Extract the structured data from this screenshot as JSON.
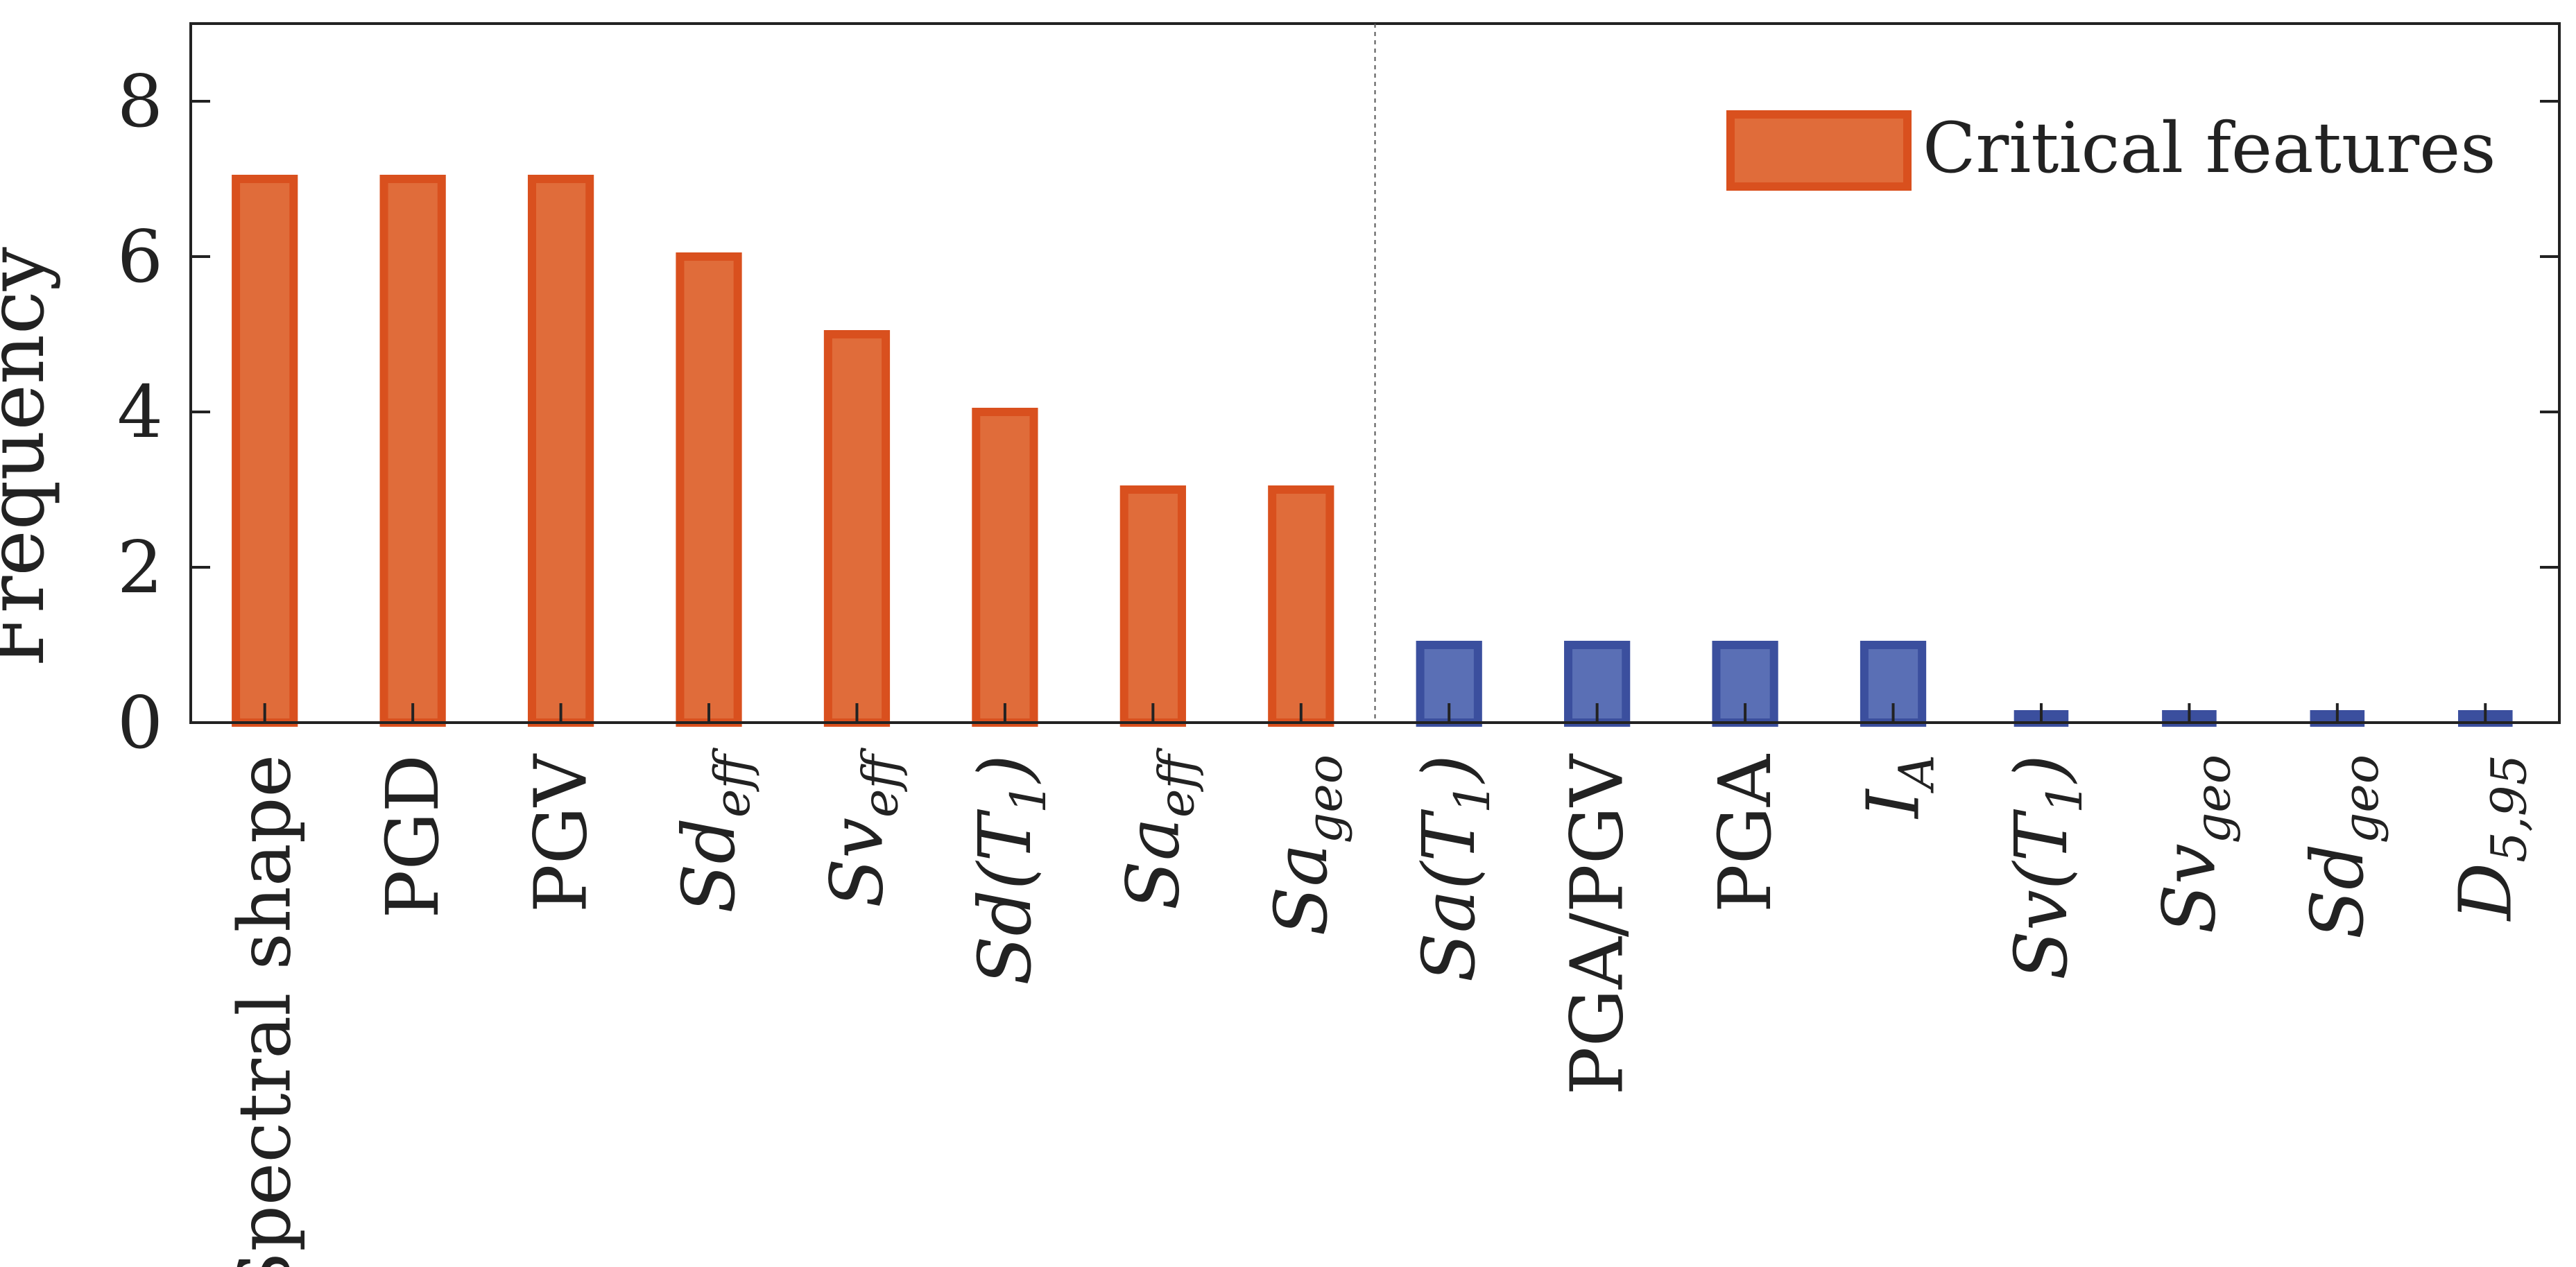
{
  "chart_data": {
    "type": "bar",
    "title": "",
    "xlabel": "",
    "ylabel": "Frequency",
    "ylim": [
      0,
      9
    ],
    "yticks": [
      0,
      2,
      4,
      6,
      8
    ],
    "grid": false,
    "legend_position": "top-right",
    "categories": [
      {
        "label": "Spectral shape",
        "base": "Spectral shape",
        "sub": "",
        "style": "normal"
      },
      {
        "label": "PGD",
        "base": "PGD",
        "sub": "",
        "style": "normal"
      },
      {
        "label": "PGV",
        "base": "PGV",
        "sub": "",
        "style": "normal"
      },
      {
        "label": "Sd_eff",
        "base": "Sd",
        "sub": "eff",
        "style": "italic"
      },
      {
        "label": "Sv_eff",
        "base": "Sv",
        "sub": "eff",
        "style": "italic"
      },
      {
        "label": "Sd(T1)",
        "base": "Sd(T",
        "sub": "1",
        "after": ")",
        "style": "italic"
      },
      {
        "label": "Sa_eff",
        "base": "Sa",
        "sub": "eff",
        "style": "italic"
      },
      {
        "label": "Sa_geo",
        "base": "Sa",
        "sub": "geo",
        "style": "italic"
      },
      {
        "label": "Sa(T1)",
        "base": "Sa(T",
        "sub": "1",
        "after": ")",
        "style": "italic"
      },
      {
        "label": "PGA/PGV",
        "base": "PGA/PGV",
        "sub": "",
        "style": "normal"
      },
      {
        "label": "PGA",
        "base": "PGA",
        "sub": "",
        "style": "normal"
      },
      {
        "label": "I_A",
        "base": "I",
        "sub": "A",
        "style": "italic"
      },
      {
        "label": "Sv(T1)",
        "base": "Sv(T",
        "sub": "1",
        "after": ")",
        "style": "italic"
      },
      {
        "label": "Sv_geo",
        "base": "Sv",
        "sub": "geo",
        "style": "italic"
      },
      {
        "label": "Sd_geo",
        "base": "Sd",
        "sub": "geo",
        "style": "italic"
      },
      {
        "label": "D_5,95",
        "base": "D",
        "sub": "5,95",
        "style": "italic"
      }
    ],
    "series": [
      {
        "name": "Critical features",
        "color_fill": "#e06c3a",
        "color_edge": "#d9501e",
        "values": [
          7,
          7,
          7,
          6,
          5,
          4,
          3,
          3,
          null,
          null,
          null,
          null,
          null,
          null,
          null,
          null
        ]
      },
      {
        "name": "",
        "color_fill": "#5a6fb5",
        "color_edge": "#3b4f9e",
        "values": [
          null,
          null,
          null,
          null,
          null,
          null,
          null,
          null,
          1,
          1,
          1,
          1,
          0,
          0,
          0,
          0
        ]
      }
    ],
    "separator_after_index": 7,
    "legend": {
      "label": "Critical features",
      "series_index": 0
    }
  }
}
